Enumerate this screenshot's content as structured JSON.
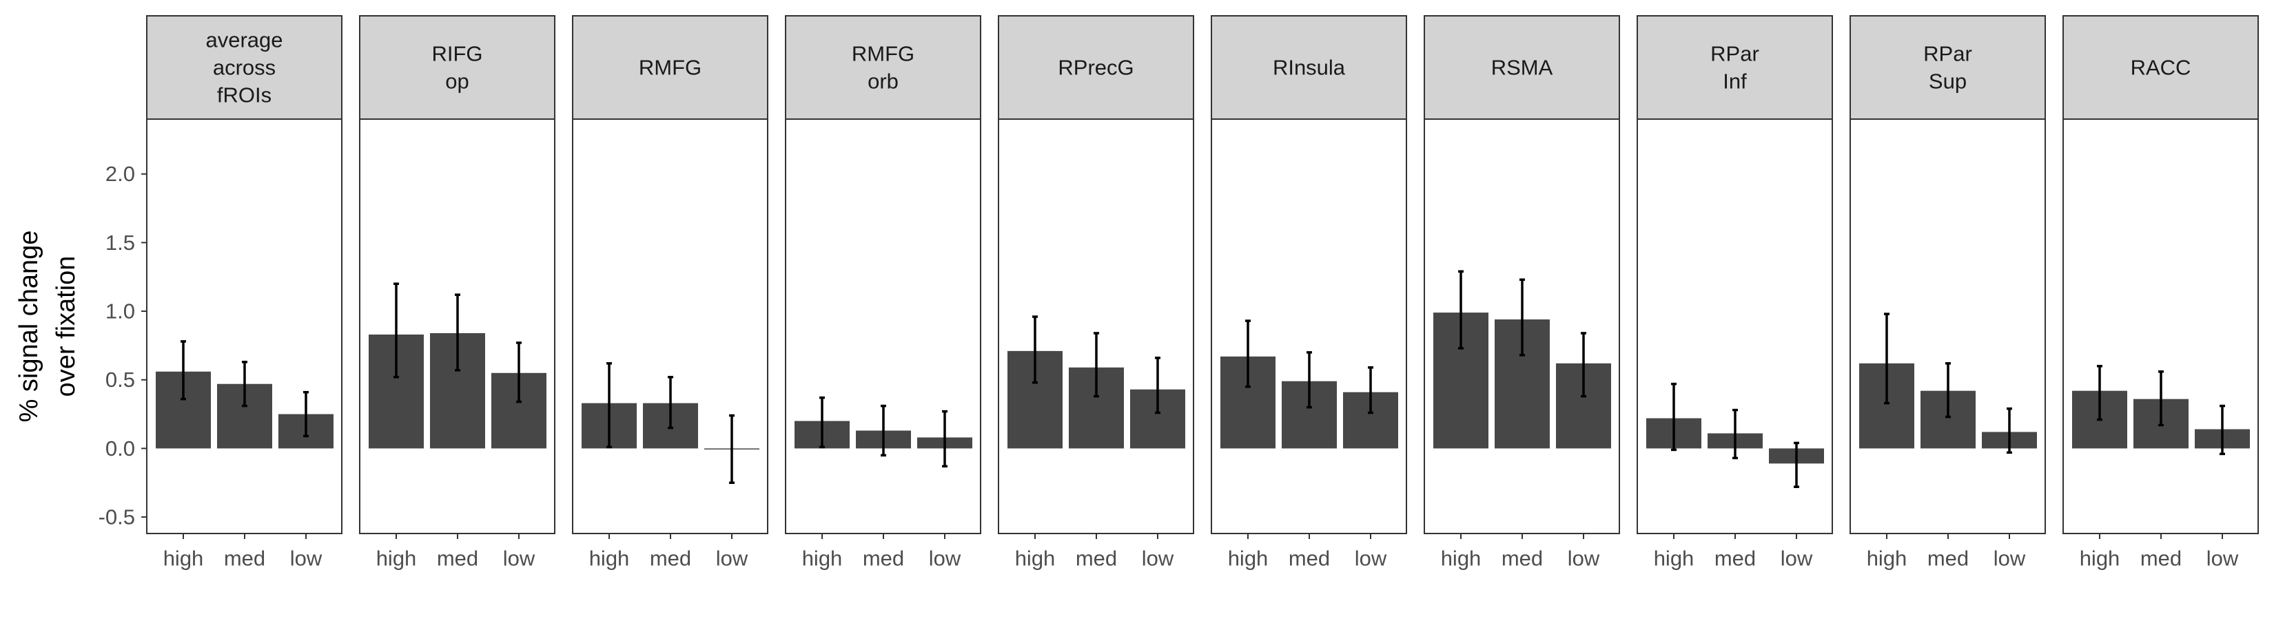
{
  "chart_data": {
    "type": "bar",
    "ylabel_lines": [
      "% signal change",
      "over fixation"
    ],
    "ylim": [
      -0.62,
      2.4
    ],
    "y_ticks": [
      -0.5,
      0.0,
      0.5,
      1.0,
      1.5,
      2.0
    ],
    "y_tick_labels": [
      "-0.5",
      "0.0",
      "0.5",
      "1.0",
      "1.5",
      "2.0"
    ],
    "categories": [
      "high",
      "med",
      "low"
    ],
    "bar_color": "#474747",
    "strip_color": "#d3d3d3",
    "panels": [
      {
        "title_lines": [
          "average",
          "across",
          "fROIs"
        ],
        "values": [
          0.56,
          0.47,
          0.25
        ],
        "err_low": [
          0.36,
          0.31,
          0.09
        ],
        "err_high": [
          0.78,
          0.63,
          0.41
        ]
      },
      {
        "title_lines": [
          "RIFG",
          "op"
        ],
        "values": [
          0.83,
          0.84,
          0.55
        ],
        "err_low": [
          0.52,
          0.57,
          0.34
        ],
        "err_high": [
          1.2,
          1.12,
          0.77
        ]
      },
      {
        "title_lines": [
          "RMFG"
        ],
        "values": [
          0.33,
          0.33,
          0.0
        ],
        "err_low": [
          0.01,
          0.15,
          -0.25
        ],
        "err_high": [
          0.62,
          0.52,
          0.24
        ]
      },
      {
        "title_lines": [
          "RMFG",
          "orb"
        ],
        "values": [
          0.2,
          0.13,
          0.08
        ],
        "err_low": [
          0.01,
          -0.05,
          -0.13
        ],
        "err_high": [
          0.37,
          0.31,
          0.27
        ]
      },
      {
        "title_lines": [
          "RPrecG"
        ],
        "values": [
          0.71,
          0.59,
          0.43
        ],
        "err_low": [
          0.48,
          0.38,
          0.26
        ],
        "err_high": [
          0.96,
          0.84,
          0.66
        ]
      },
      {
        "title_lines": [
          "RInsula"
        ],
        "values": [
          0.67,
          0.49,
          0.41
        ],
        "err_low": [
          0.45,
          0.3,
          0.26
        ],
        "err_high": [
          0.93,
          0.7,
          0.59
        ]
      },
      {
        "title_lines": [
          "RSMA"
        ],
        "values": [
          0.99,
          0.94,
          0.62
        ],
        "err_low": [
          0.73,
          0.68,
          0.38
        ],
        "err_high": [
          1.29,
          1.23,
          0.84
        ]
      },
      {
        "title_lines": [
          "RPar",
          "Inf"
        ],
        "values": [
          0.22,
          0.11,
          -0.11
        ],
        "err_low": [
          -0.01,
          -0.07,
          -0.28
        ],
        "err_high": [
          0.47,
          0.28,
          0.04
        ]
      },
      {
        "title_lines": [
          "RPar",
          "Sup"
        ],
        "values": [
          0.62,
          0.42,
          0.12
        ],
        "err_low": [
          0.33,
          0.23,
          -0.03
        ],
        "err_high": [
          0.98,
          0.62,
          0.29
        ]
      },
      {
        "title_lines": [
          "RACC"
        ],
        "values": [
          0.42,
          0.36,
          0.14
        ],
        "err_low": [
          0.21,
          0.17,
          -0.04
        ],
        "err_high": [
          0.6,
          0.56,
          0.31
        ]
      }
    ]
  }
}
